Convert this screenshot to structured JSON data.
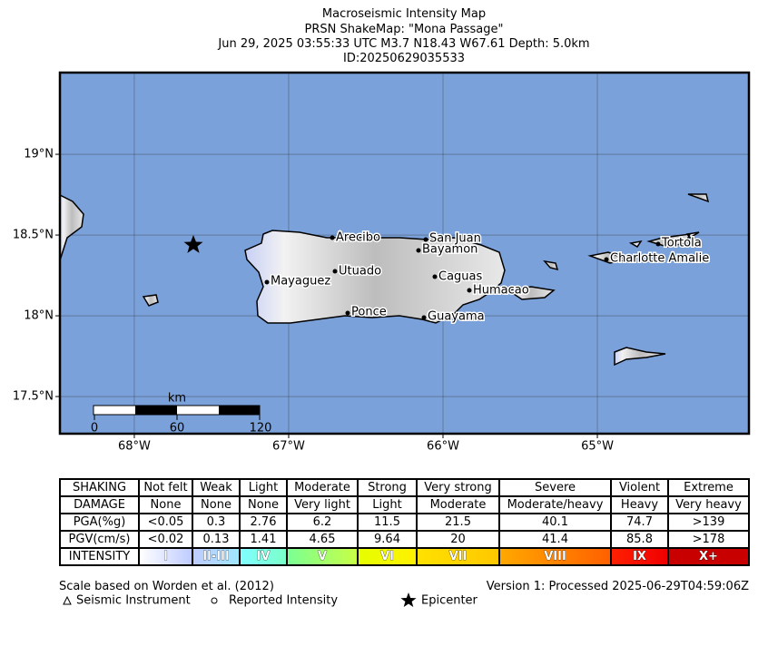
{
  "header": {
    "lines": [
      "Macroseismic Intensity Map",
      "PRSN ShakeMap: \"Mona Passage\"",
      "Jun 29, 2025 03:55:33 UTC M3.7 N18.43 W67.61 Depth: 5.0km",
      "ID:20250629035533"
    ]
  },
  "map": {
    "xlim": [
      -68.482,
      -64.018
    ],
    "ylim": [
      17.27,
      19.506
    ],
    "xticks": [
      {
        "value": -68,
        "label": "68°W"
      },
      {
        "value": -67,
        "label": "67°W"
      },
      {
        "value": -66,
        "label": "66°W"
      },
      {
        "value": -65,
        "label": "65°W"
      }
    ],
    "yticks": [
      {
        "value": 17.5,
        "label": "17.5°N"
      },
      {
        "value": 18,
        "label": "18°N"
      },
      {
        "value": 18.5,
        "label": "18.5°N"
      },
      {
        "value": 19,
        "label": "19°N"
      }
    ],
    "grid": true,
    "cities": [
      "Arecibo",
      "San Juan",
      "Bayamon",
      "Utuado",
      "Mayaguez",
      "Caguas",
      "Humacao",
      "Ponce",
      "Guayama",
      "Tortola",
      "Charlotte Amalie"
    ],
    "scale_bar": {
      "unit": "km",
      "ticks": [
        0,
        60,
        120
      ]
    }
  },
  "legend": {
    "rows": [
      [
        "SHAKING",
        "Not felt",
        "Weak",
        "Light",
        "Moderate",
        "Strong",
        "Very strong",
        "Severe",
        "Violent",
        "Extreme"
      ],
      [
        "DAMAGE",
        "None",
        "None",
        "None",
        "Very light",
        "Light",
        "Moderate",
        "Moderate/heavy",
        "Heavy",
        "Very heavy"
      ],
      [
        "PGA(%g)",
        "<0.05",
        "0.3",
        "2.76",
        "6.2",
        "11.5",
        "21.5",
        "40.1",
        "74.7",
        ">139"
      ],
      [
        "PGV(cm/s)",
        "<0.02",
        "0.13",
        "1.41",
        "4.65",
        "9.64",
        "20",
        "41.4",
        "85.8",
        ">178"
      ],
      [
        "INTENSITY",
        "I",
        "II-III",
        "IV",
        "V",
        "VI",
        "VII",
        "VIII",
        "IX",
        "X+"
      ]
    ]
  },
  "footer": {
    "note": "Scale based on Worden et al. (2012)",
    "version": "Version 1: Processed 2025-06-29T04:59:06Z",
    "symbols": [
      "Seismic Instrument",
      "Reported Intensity",
      "Epicenter"
    ]
  }
}
